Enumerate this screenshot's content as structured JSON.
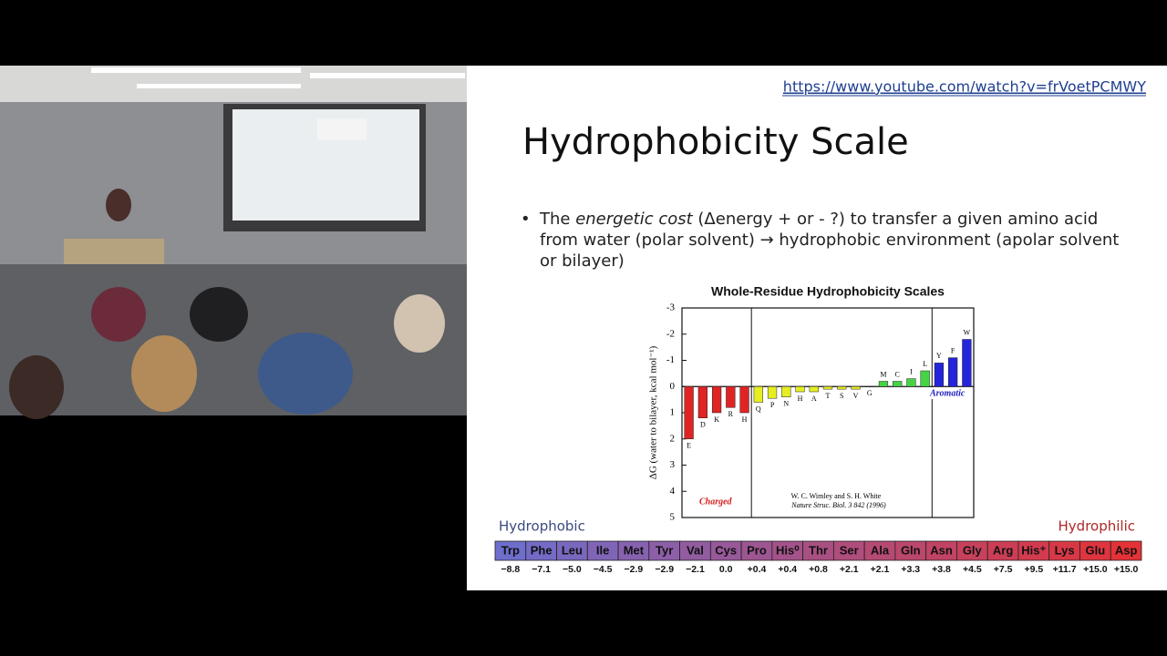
{
  "slide": {
    "url": "https://www.youtube.com/watch?v=frVoetPCMWY",
    "title": "Hydrophobicity Scale",
    "bullet": [
      "The ",
      "energetic cost",
      " (Δenergy + or - ?) to transfer a given amino acid from water (polar solvent) ",
      "→",
      " hydrophobic environment (apolar solvent or bilayer)"
    ]
  },
  "chart_data": {
    "type": "bar",
    "title": "Whole-Residue Hydrophobicity Scales",
    "y_label": "ΔG (water to bilayer, kcal mol⁻¹)",
    "categories": [
      "E",
      "D",
      "K",
      "R",
      "H",
      "Q",
      "P",
      "N",
      "H",
      "A",
      "T",
      "S",
      "V",
      "G",
      "M",
      "C",
      "I",
      "L",
      "Y",
      "F",
      "W"
    ],
    "values": [
      2.0,
      1.2,
      1.0,
      0.8,
      1.0,
      0.6,
      0.45,
      0.4,
      0.2,
      0.2,
      0.1,
      0.1,
      0.1,
      0.0,
      -0.2,
      -0.2,
      -0.3,
      -0.6,
      -0.9,
      -1.1,
      -1.8
    ],
    "colors": [
      "#e02424",
      "#e02424",
      "#e02424",
      "#e02424",
      "#e02424",
      "#e6ee22",
      "#e6ee22",
      "#e6ee22",
      "#e6ee22",
      "#e6ee22",
      "#e6ee22",
      "#e6ee22",
      "#e6ee22",
      "#e6ee22",
      "#44d444",
      "#44d444",
      "#44d444",
      "#44d444",
      "#2424dc",
      "#2424dc",
      "#2424dc"
    ],
    "ylim": [
      -3,
      5
    ],
    "yticks": [
      -3,
      -2,
      -1,
      0,
      1,
      2,
      3,
      4,
      5
    ],
    "y_inverted": true,
    "annotations": [
      "Charged",
      "Aromatic",
      "W. C. Wimley and S. H. White",
      "Nature Struc. Biol. 3 842 (1996)"
    ]
  },
  "scale": {
    "left_label": "Hydrophobic",
    "right_label": "Hydrophilic",
    "residues": [
      "Trp",
      "Phe",
      "Leu",
      "Ile",
      "Met",
      "Tyr",
      "Val",
      "Cys",
      "Pro",
      "His⁰",
      "Thr",
      "Ser",
      "Ala",
      "Gln",
      "Asn",
      "Gly",
      "Arg",
      "His⁺",
      "Lys",
      "Glu",
      "Asp"
    ],
    "values": [
      "−8.8",
      "−7.1",
      "−5.0",
      "−4.5",
      "−2.9",
      "−2.9",
      "−2.1",
      "0.0",
      "+0.4",
      "+0.4",
      "+0.8",
      "+2.1",
      "+2.1",
      "+3.3",
      "+3.8",
      "+4.5",
      "+7.5",
      "+9.5",
      "+11.7",
      "+15.0",
      "+15.0"
    ]
  }
}
